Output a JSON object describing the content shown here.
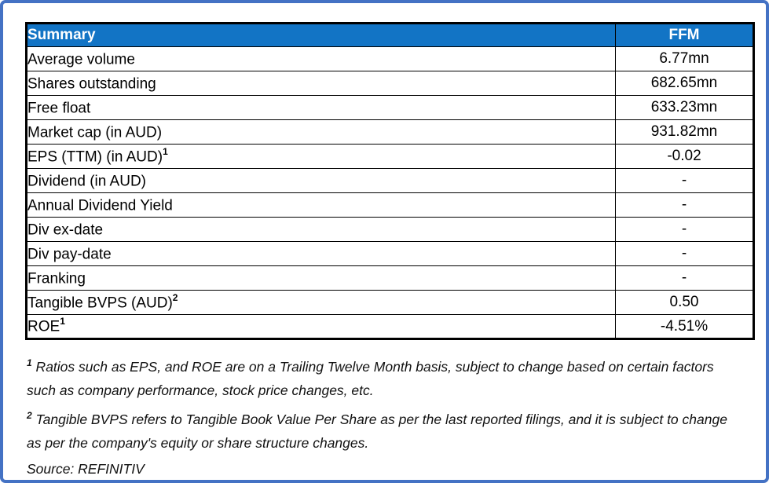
{
  "colors": {
    "frame_border": "#4472C4",
    "header_bg": "#1274C5",
    "header_text": "#FFFFFF",
    "table_border": "#000000"
  },
  "table": {
    "header": {
      "label": "Summary",
      "value": "FFM"
    },
    "rows": [
      {
        "label": "Average volume",
        "value": "6.77mn"
      },
      {
        "label": "Shares outstanding",
        "value": "682.65mn"
      },
      {
        "label": "Free float",
        "value": "633.23mn"
      },
      {
        "label": "Market cap (in AUD)",
        "value": "931.82mn"
      },
      {
        "label": "EPS (TTM) (in AUD)",
        "sup": "1",
        "value": "-0.02"
      },
      {
        "label": "Dividend (in AUD)",
        "value": "-"
      },
      {
        "label": "Annual Dividend Yield",
        "value": "-"
      },
      {
        "label": "Div ex-date",
        "value": "-"
      },
      {
        "label": "Div pay-date",
        "value": "-"
      },
      {
        "label": "Franking",
        "value": "-"
      },
      {
        "label": "Tangible BVPS (AUD)",
        "sup": "2",
        "value": "0.50"
      },
      {
        "label": "ROE",
        "sup": "1",
        "value": "-4.51%"
      }
    ]
  },
  "footnotes": [
    {
      "sup": "1",
      "text": " Ratios such as EPS, and ROE are on a Trailing Twelve Month basis, subject to change based on certain factors such as company performance, stock price changes, etc."
    },
    {
      "sup": "2",
      "text": " Tangible BVPS refers to Tangible Book Value Per Share as per the last reported filings, and it is subject to change as per the company's equity or share structure changes."
    }
  ],
  "source": "Source: REFINITIV"
}
